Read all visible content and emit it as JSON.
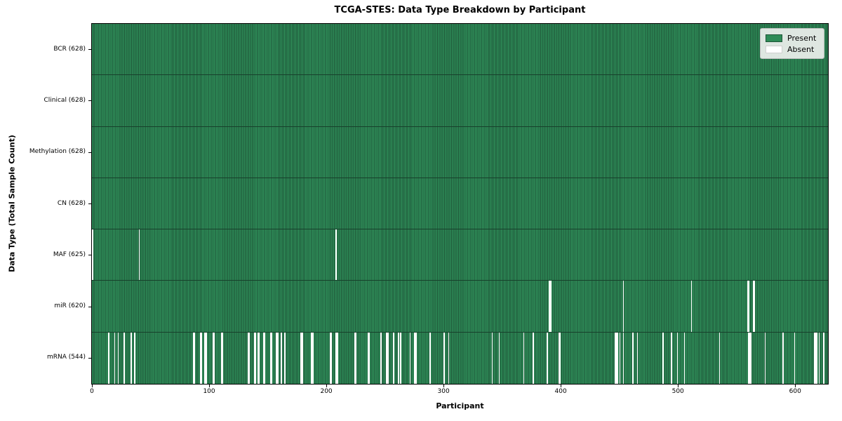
{
  "figure": {
    "title": "TCGA-STES: Data Type Breakdown by Participant",
    "xlabel": "Participant",
    "ylabel": "Data Type (Total Sample Count)"
  },
  "legend": {
    "present_label": "Present",
    "absent_label": "Absent"
  },
  "colors": {
    "present": "#2e8b57",
    "present_edge": "#1f5638",
    "absent": "#ffffff",
    "row_separator": "#17402b",
    "plot_border": "#000000"
  },
  "chart_data": {
    "type": "heatmap",
    "title": "TCGA-STES: Data Type Breakdown by Participant",
    "xlabel": "Participant",
    "ylabel": "Data Type (Total Sample Count)",
    "legend_position": "upper right",
    "n_participants": 628,
    "x_ticks": [
      0,
      100,
      200,
      300,
      400,
      500,
      600
    ],
    "x_range": [
      0,
      628
    ],
    "legend": [
      {
        "label": "Present",
        "color": "#2e8b57"
      },
      {
        "label": "Absent",
        "color": "#ffffff"
      }
    ],
    "rows": [
      {
        "data_type": "BCR",
        "label": "BCR (628)",
        "present_count": 628,
        "absent_participants": []
      },
      {
        "data_type": "Clinical",
        "label": "Clinical (628)",
        "present_count": 628,
        "absent_participants": []
      },
      {
        "data_type": "Methylation",
        "label": "Methylation (628)",
        "present_count": 628,
        "absent_participants": []
      },
      {
        "data_type": "CN",
        "label": "CN (628)",
        "present_count": 628,
        "absent_participants": []
      },
      {
        "data_type": "MAF",
        "label": "MAF (625)",
        "present_count": 625,
        "absent_participants": [
          0,
          40,
          208
        ]
      },
      {
        "data_type": "miR",
        "label": "miR (620)",
        "present_count": 620,
        "absent_participants": [
          390,
          391,
          453,
          511,
          559,
          560,
          564,
          565
        ]
      },
      {
        "data_type": "mRNA",
        "label": "mRNA (544)",
        "present_count": 544,
        "absent_participants": [
          14,
          19,
          22,
          27,
          33,
          36,
          86,
          87,
          92,
          93,
          96,
          97,
          103,
          104,
          110,
          111,
          133,
          134,
          138,
          139,
          141,
          142,
          146,
          147,
          152,
          153,
          157,
          158,
          161,
          164,
          178,
          179,
          187,
          188,
          203,
          204,
          208,
          209,
          224,
          225,
          235,
          236,
          246,
          251,
          252,
          257,
          261,
          263,
          271,
          275,
          276,
          288,
          300,
          304,
          341,
          347,
          368,
          376,
          388,
          398,
          399,
          446,
          447,
          448,
          450,
          453,
          461,
          465,
          487,
          494,
          499,
          505,
          535,
          560,
          561,
          562,
          574,
          589,
          599,
          616,
          617,
          618,
          620,
          624
        ]
      }
    ]
  }
}
